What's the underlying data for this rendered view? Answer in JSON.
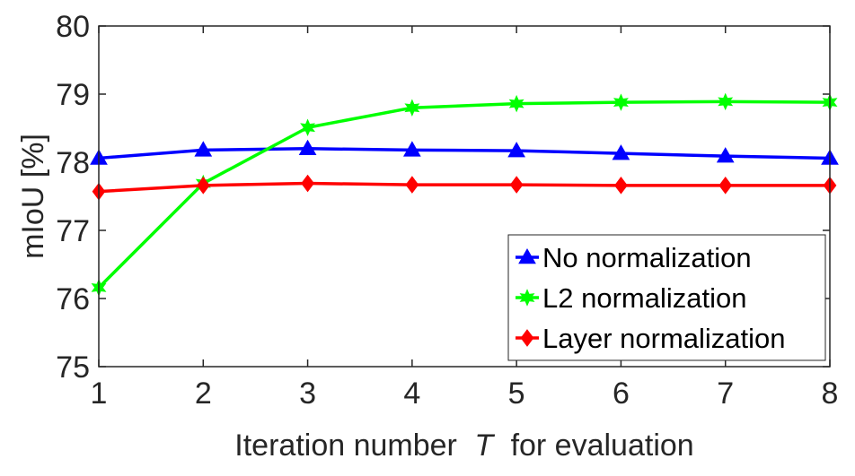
{
  "chart_data": {
    "type": "line",
    "title": "",
    "xlabel": "Iteration number",
    "xlabel_symbol": "T",
    "xlabel_suffix": "for evaluation",
    "ylabel": "mIoU [%]",
    "x": [
      1,
      2,
      3,
      4,
      5,
      6,
      7,
      8
    ],
    "xlim": [
      1,
      8
    ],
    "ylim": [
      75,
      80
    ],
    "xticks": [
      "1",
      "2",
      "3",
      "4",
      "5",
      "6",
      "7",
      "8"
    ],
    "yticks": [
      "75",
      "76",
      "77",
      "78",
      "79",
      "80"
    ],
    "grid": false,
    "legend_position": "bottom-right",
    "series": [
      {
        "name": "No normalization",
        "color": "#0000ff",
        "marker": "triangle",
        "values": [
          78.06,
          78.18,
          78.2,
          78.18,
          78.17,
          78.13,
          78.09,
          78.06
        ]
      },
      {
        "name": "L2 normalization",
        "color": "#00ff00",
        "marker": "hexagram",
        "values": [
          76.16,
          77.69,
          78.51,
          78.8,
          78.86,
          78.88,
          78.89,
          78.88
        ]
      },
      {
        "name": "Layer normalization",
        "color": "#ff0000",
        "marker": "diamond",
        "values": [
          77.57,
          77.66,
          77.69,
          77.67,
          77.67,
          77.66,
          77.66,
          77.66
        ]
      }
    ]
  }
}
